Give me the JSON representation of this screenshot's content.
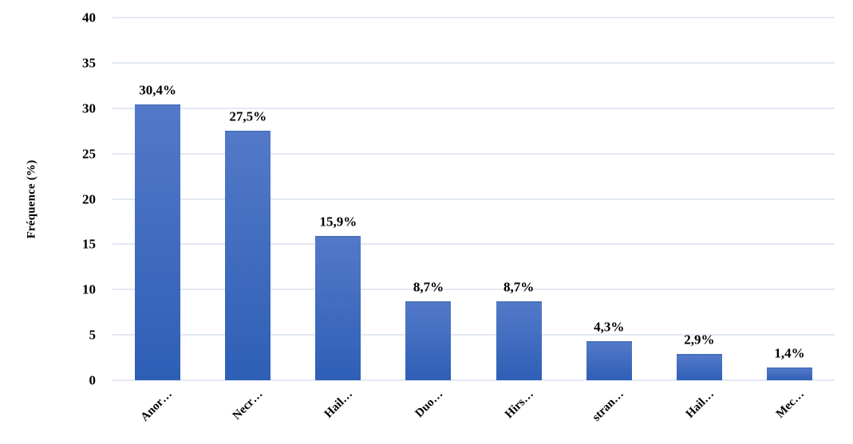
{
  "chart_data": {
    "type": "bar",
    "title": "",
    "categories": [
      "Anor…",
      "Necr…",
      "Hail…",
      "Duo…",
      "Hirs…",
      "stran…",
      "Hail…",
      "Mec…"
    ],
    "values": [
      30.4,
      27.5,
      15.9,
      8.7,
      8.7,
      4.3,
      2.9,
      1.4
    ],
    "data_labels": [
      "30,4%",
      "27,5%",
      "15,9%",
      "8,7%",
      "8,7%",
      "4,3%",
      "2,9%",
      "1,4%"
    ],
    "xlabel": "",
    "ylabel": "Fréquence (%)",
    "ylim": [
      0,
      40
    ],
    "yticks": [
      40,
      35,
      30,
      25,
      20,
      15,
      10,
      5,
      0
    ],
    "grid": true,
    "legend": false,
    "colors": {
      "bar_gradient_top": "#5379C8",
      "bar_gradient_bottom": "#2E5FB6",
      "bar_top_edge": "#4A71BD",
      "gridline": "#E3E9F1",
      "text": "#000000",
      "background": "#FFFFFF"
    }
  }
}
